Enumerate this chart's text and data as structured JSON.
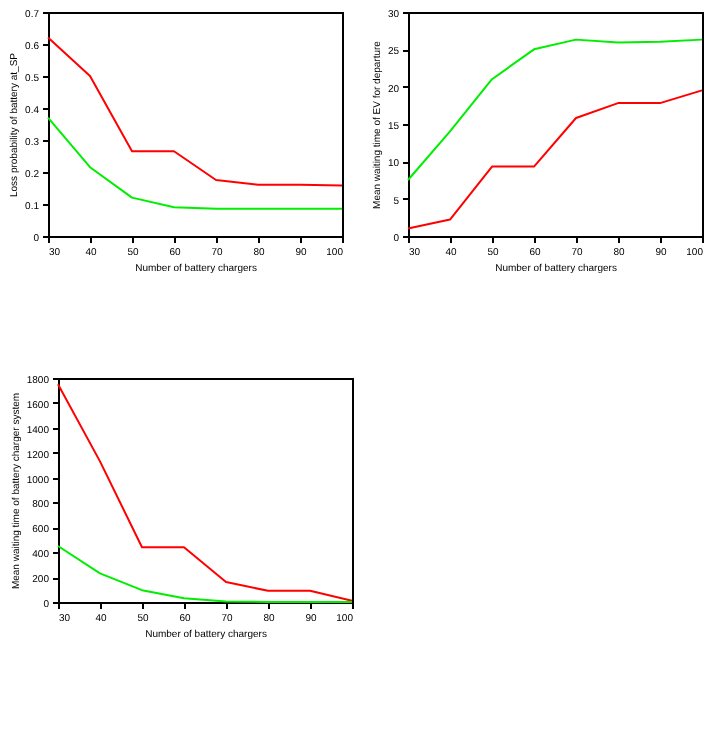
{
  "chart_data": [
    {
      "type": "line",
      "xlabel": "Number of battery chargers",
      "ylabel": "Loss probability of battery at_SP",
      "x": [
        30,
        40,
        50,
        60,
        70,
        80,
        90,
        100
      ],
      "xlim": [
        30,
        100
      ],
      "xticks": [
        30,
        40,
        50,
        60,
        70,
        80,
        90,
        100
      ],
      "ylim": [
        0,
        0.7
      ],
      "yticks": [
        0,
        0.1,
        0.2,
        0.3,
        0.4,
        0.5,
        0.6,
        0.7
      ],
      "series": [
        {
          "color": "#ff0000",
          "values": [
            0.62,
            0.5,
            0.265,
            0.265,
            0.175,
            0.16,
            0.16,
            0.158
          ]
        },
        {
          "color": "#00ee00",
          "values": [
            0.37,
            0.215,
            0.12,
            0.09,
            0.085,
            0.085,
            0.085,
            0.085
          ]
        }
      ]
    },
    {
      "type": "line",
      "xlabel": "Number of battery chargers",
      "ylabel": "Mean waiting time of EV for departure",
      "x": [
        30,
        40,
        50,
        60,
        70,
        80,
        90,
        100
      ],
      "xlim": [
        30,
        100
      ],
      "xticks": [
        30,
        40,
        50,
        60,
        70,
        80,
        90,
        100
      ],
      "ylim": [
        0,
        30
      ],
      "yticks": [
        0,
        5,
        10,
        15,
        20,
        25,
        30
      ],
      "series": [
        {
          "color": "#ff0000",
          "values": [
            1,
            2.2,
            9.3,
            9.3,
            15.8,
            17.8,
            17.8,
            19.5
          ]
        },
        {
          "color": "#00ee00",
          "values": [
            7.5,
            14,
            21,
            25,
            26.3,
            25.9,
            26,
            26.3
          ]
        }
      ]
    },
    {
      "type": "line",
      "xlabel": "Number of battery chargers",
      "ylabel": "Mean waiting time of battery charger system",
      "x": [
        30,
        40,
        50,
        60,
        70,
        80,
        90,
        100
      ],
      "xlim": [
        30,
        100
      ],
      "xticks": [
        30,
        40,
        50,
        60,
        70,
        80,
        90,
        100
      ],
      "ylim": [
        0,
        1800
      ],
      "yticks": [
        0,
        200,
        400,
        600,
        800,
        1000,
        1200,
        1400,
        1600,
        1800
      ],
      "series": [
        {
          "color": "#ff0000",
          "values": [
            1750,
            1130,
            440,
            440,
            160,
            90,
            90,
            10
          ]
        },
        {
          "color": "#00ee00",
          "values": [
            450,
            230,
            95,
            30,
            5,
            0,
            0,
            0
          ]
        }
      ]
    }
  ]
}
